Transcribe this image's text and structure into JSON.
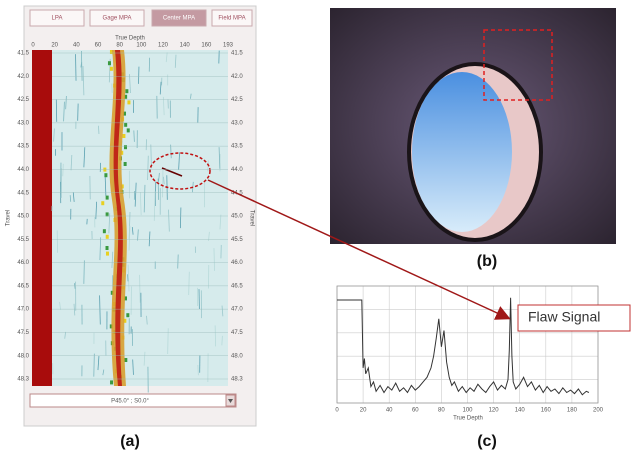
{
  "scan": {
    "tabs": [
      "LPA",
      "Gage MPA",
      "Center MPA",
      "Field MPA"
    ],
    "x_axis_label": "True Depth",
    "x_ticks": [
      "0",
      "20",
      "40",
      "60",
      "80",
      "100",
      "120",
      "140",
      "160",
      "193"
    ],
    "y_axis_label": "Travel",
    "y_ticks": [
      "41.5",
      "42.0",
      "42.5",
      "43.0",
      "43.5",
      "44.0",
      "44.5",
      "45.0",
      "45.5",
      "46.0",
      "46.5",
      "47.0",
      "47.5",
      "48.0",
      "48.3"
    ],
    "angle_select": "P45.0° ; S0.0°",
    "caption": "(a)"
  },
  "photo": {
    "caption": "(b)"
  },
  "chart_data": {
    "type": "line",
    "caption": "(c)",
    "xlabel": "True Depth",
    "annotation": "Flaw Signal",
    "x": [
      0,
      5,
      10,
      15,
      19,
      20,
      21,
      22,
      24,
      26,
      28,
      30,
      33,
      36,
      39,
      42,
      45,
      48,
      51,
      54,
      57,
      60,
      63,
      66,
      69,
      72,
      74,
      76,
      78,
      79,
      80,
      82,
      84,
      86,
      88,
      90,
      93,
      96,
      99,
      102,
      105,
      108,
      111,
      114,
      117,
      120,
      123,
      126,
      129,
      131,
      132,
      133,
      134,
      135,
      137,
      140,
      143,
      146,
      149,
      152,
      155,
      158,
      161,
      164,
      167,
      170,
      173,
      176,
      179,
      182,
      185,
      188,
      191,
      193
    ],
    "series": [
      {
        "color": "#333333",
        "values": [
          88,
          88,
          88,
          88,
          88,
          30,
          38,
          25,
          30,
          14,
          18,
          10,
          15,
          9,
          14,
          11,
          17,
          10,
          13,
          9,
          15,
          11,
          14,
          18,
          22,
          30,
          40,
          55,
          72,
          60,
          48,
          62,
          35,
          22,
          15,
          18,
          10,
          14,
          9,
          13,
          10,
          16,
          12,
          9,
          14,
          18,
          11,
          15,
          12,
          20,
          45,
          90,
          40,
          18,
          12,
          16,
          22,
          14,
          18,
          11,
          15,
          9,
          14,
          10,
          12,
          8,
          13,
          9,
          11,
          8,
          12,
          7,
          10,
          9
        ]
      }
    ],
    "xlim": [
      0,
      200
    ],
    "xticks": [
      0,
      20,
      40,
      60,
      80,
      100,
      120,
      140,
      160,
      180,
      200
    ],
    "ylim": [
      0,
      100
    ],
    "grid": true
  }
}
